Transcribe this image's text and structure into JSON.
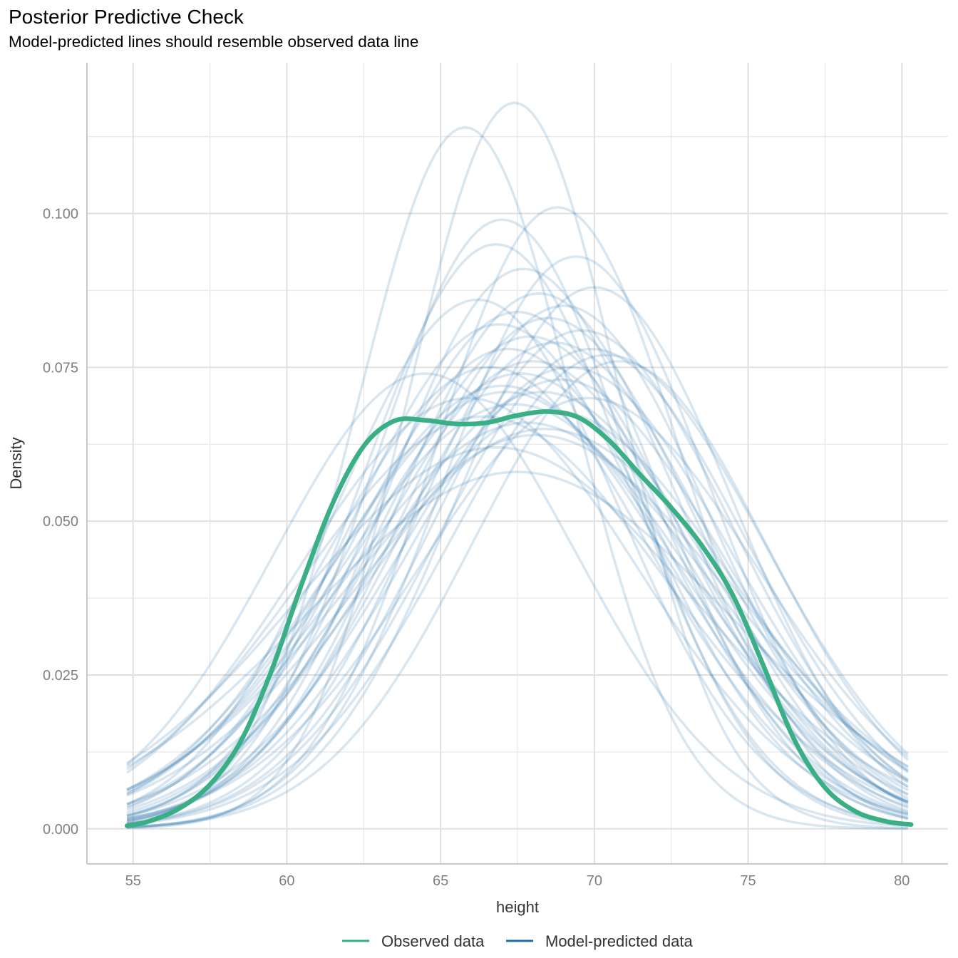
{
  "chart_data": {
    "type": "line",
    "title": "Posterior Predictive Check",
    "subtitle": "Model-predicted lines should resemble observed data line",
    "xlabel": "height",
    "ylabel": "Density",
    "xlim": [
      53.5,
      81.5
    ],
    "ylim": [
      -0.0057,
      0.1245
    ],
    "x_ticks": [
      55,
      60,
      65,
      70,
      75,
      80
    ],
    "x_tick_labels": [
      "55",
      "60",
      "65",
      "70",
      "75",
      "80"
    ],
    "y_ticks": [
      0.0,
      0.025,
      0.05,
      0.075,
      0.1
    ],
    "y_tick_labels": [
      "0.000",
      "0.025",
      "0.050",
      "0.075",
      "0.100"
    ],
    "grid": true,
    "legend_position": "bottom",
    "colors": {
      "observed": "#3aaf85",
      "predicted": "#1f6ca8"
    },
    "series": [
      {
        "name": "Observed data",
        "x": [
          54.8,
          55.5,
          56.5,
          57.5,
          58.5,
          59.5,
          60.5,
          61.5,
          62.5,
          63.5,
          64.5,
          65.5,
          66.5,
          67.5,
          68.5,
          69.5,
          70.5,
          71.5,
          72.5,
          73.5,
          74.5,
          75.5,
          76.5,
          77.5,
          78.5,
          79.5,
          80.3
        ],
        "y": [
          0.0005,
          0.0012,
          0.0033,
          0.0072,
          0.0142,
          0.0257,
          0.04,
          0.053,
          0.0622,
          0.0663,
          0.0664,
          0.0658,
          0.066,
          0.0672,
          0.0678,
          0.0668,
          0.063,
          0.0575,
          0.0522,
          0.046,
          0.038,
          0.0265,
          0.0145,
          0.0067,
          0.0028,
          0.0012,
          0.0007
        ]
      },
      {
        "name": "Model-predicted data",
        "draws": [
          {
            "mean": 67.4,
            "sd": 3.4,
            "peak": 0.118
          },
          {
            "mean": 65.8,
            "sd": 3.5,
            "peak": 0.114
          },
          {
            "mean": 68.8,
            "sd": 4.0,
            "peak": 0.101
          },
          {
            "mean": 67.0,
            "sd": 4.1,
            "peak": 0.099
          },
          {
            "mean": 66.8,
            "sd": 4.3,
            "peak": 0.095
          },
          {
            "mean": 69.4,
            "sd": 4.3,
            "peak": 0.093
          },
          {
            "mean": 67.7,
            "sd": 4.4,
            "peak": 0.091
          },
          {
            "mean": 70.0,
            "sd": 4.5,
            "peak": 0.088
          },
          {
            "mean": 68.2,
            "sd": 4.6,
            "peak": 0.087
          },
          {
            "mean": 66.2,
            "sd": 4.6,
            "peak": 0.086
          },
          {
            "mean": 69.0,
            "sd": 4.7,
            "peak": 0.085
          },
          {
            "mean": 67.5,
            "sd": 4.7,
            "peak": 0.084
          },
          {
            "mean": 68.5,
            "sd": 4.8,
            "peak": 0.083
          },
          {
            "mean": 66.9,
            "sd": 4.8,
            "peak": 0.082
          },
          {
            "mean": 69.6,
            "sd": 4.9,
            "peak": 0.081
          },
          {
            "mean": 67.9,
            "sd": 4.9,
            "peak": 0.08
          },
          {
            "mean": 68.7,
            "sd": 5.0,
            "peak": 0.079
          },
          {
            "mean": 67.2,
            "sd": 5.0,
            "peak": 0.078
          },
          {
            "mean": 70.4,
            "sd": 5.1,
            "peak": 0.077
          },
          {
            "mean": 68.0,
            "sd": 5.1,
            "peak": 0.076
          },
          {
            "mean": 66.6,
            "sd": 5.2,
            "peak": 0.075
          },
          {
            "mean": 69.2,
            "sd": 5.2,
            "peak": 0.075
          },
          {
            "mean": 67.6,
            "sd": 5.3,
            "peak": 0.074
          },
          {
            "mean": 68.9,
            "sd": 5.3,
            "peak": 0.073
          },
          {
            "mean": 67.0,
            "sd": 5.4,
            "peak": 0.072
          },
          {
            "mean": 68.3,
            "sd": 5.4,
            "peak": 0.071
          },
          {
            "mean": 65.9,
            "sd": 5.5,
            "peak": 0.07
          },
          {
            "mean": 69.8,
            "sd": 5.5,
            "peak": 0.07
          },
          {
            "mean": 67.4,
            "sd": 5.7,
            "peak": 0.069
          },
          {
            "mean": 68.6,
            "sd": 5.8,
            "peak": 0.068
          },
          {
            "mean": 66.4,
            "sd": 5.9,
            "peak": 0.067
          },
          {
            "mean": 67.8,
            "sd": 6.0,
            "peak": 0.066
          },
          {
            "mean": 68.1,
            "sd": 6.2,
            "peak": 0.064
          },
          {
            "mean": 66.8,
            "sd": 6.4,
            "peak": 0.062
          },
          {
            "mean": 67.5,
            "sd": 6.8,
            "peak": 0.058
          },
          {
            "mean": 68.4,
            "sd": 6.1,
            "peak": 0.065
          },
          {
            "mean": 70.8,
            "sd": 4.8,
            "peak": 0.076
          },
          {
            "mean": 64.5,
            "sd": 4.9,
            "peak": 0.074
          },
          {
            "mean": 69.9,
            "sd": 5.0,
            "peak": 0.078
          },
          {
            "mean": 67.1,
            "sd": 5.6,
            "peak": 0.071
          }
        ]
      }
    ]
  },
  "legend": {
    "observed_label": "Observed data",
    "predicted_label": "Model-predicted data"
  }
}
